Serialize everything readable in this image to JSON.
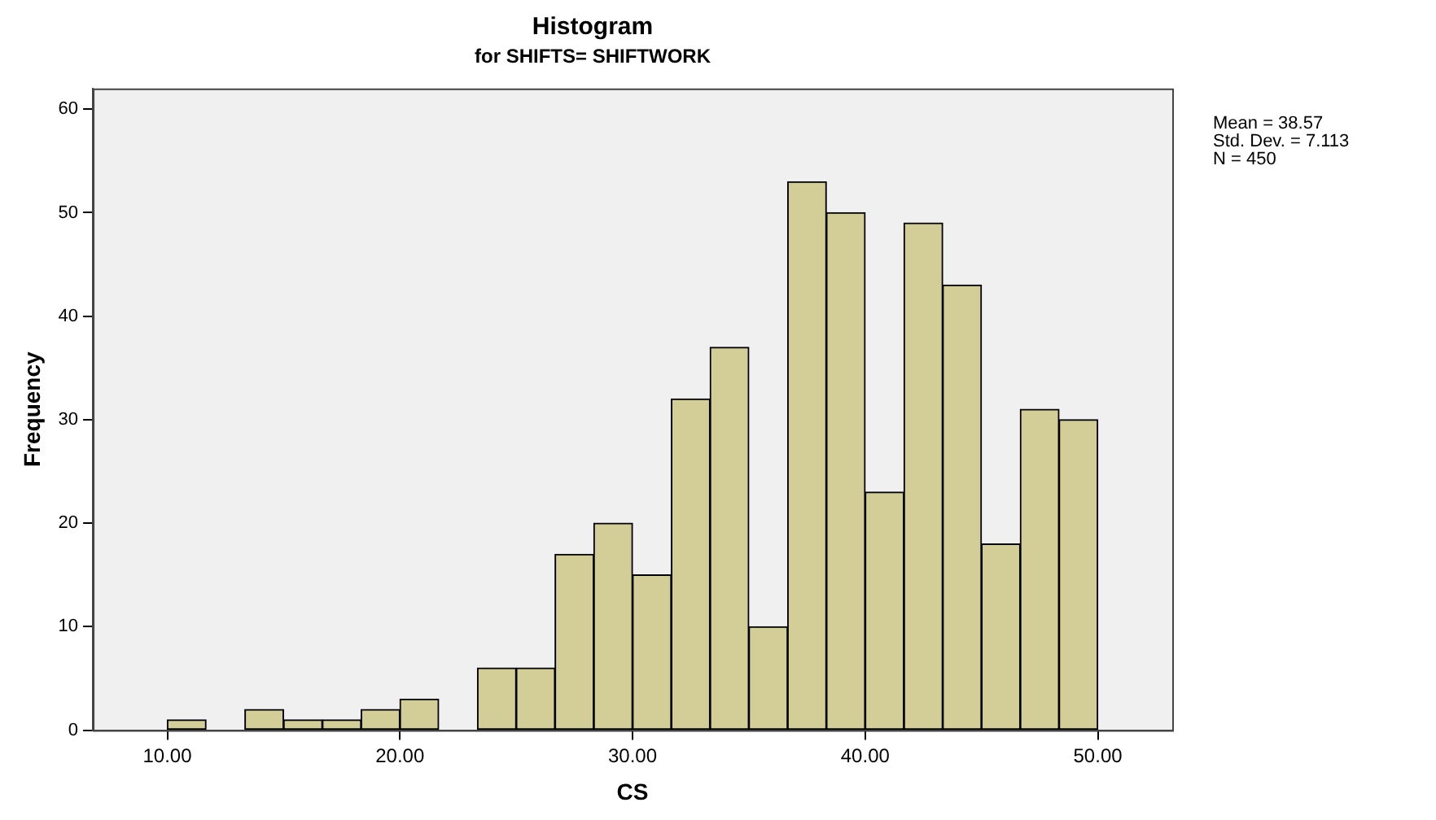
{
  "chart_data": {
    "type": "histogram",
    "title": "Histogram",
    "subtitle": "for SHIFTS= SHIFTWORK",
    "xlabel": "CS",
    "ylabel": "Frequency",
    "annotations": [
      "Mean = 38.57",
      "Std. Dev. = 7.113",
      "N = 450"
    ],
    "bins": [
      10,
      11.667,
      13.333,
      15,
      16.667,
      18.333,
      20,
      21.667,
      23.333,
      25,
      26.667,
      28.333,
      30,
      31.667,
      33.333,
      35,
      36.667,
      38.333,
      40,
      41.667,
      43.333,
      45,
      46.667,
      48.333,
      50
    ],
    "values": [
      1,
      0,
      2,
      1,
      1,
      2,
      3,
      0,
      6,
      6,
      17,
      20,
      15,
      32,
      37,
      10,
      53,
      50,
      23,
      49,
      43,
      18,
      31,
      30
    ],
    "color": "#d3ce97",
    "xlim": [
      6.8,
      53.2
    ],
    "xticks": [
      {
        "value": 10,
        "label": "10.00"
      },
      {
        "value": 20,
        "label": "20.00"
      },
      {
        "value": 30,
        "label": "30.00"
      },
      {
        "value": 40,
        "label": "40.00"
      },
      {
        "value": 50,
        "label": "50.00"
      }
    ],
    "ylim": [
      0,
      62
    ],
    "yticks": [
      0,
      10,
      20,
      30,
      40,
      50,
      60
    ],
    "grid": false,
    "legend": false
  }
}
